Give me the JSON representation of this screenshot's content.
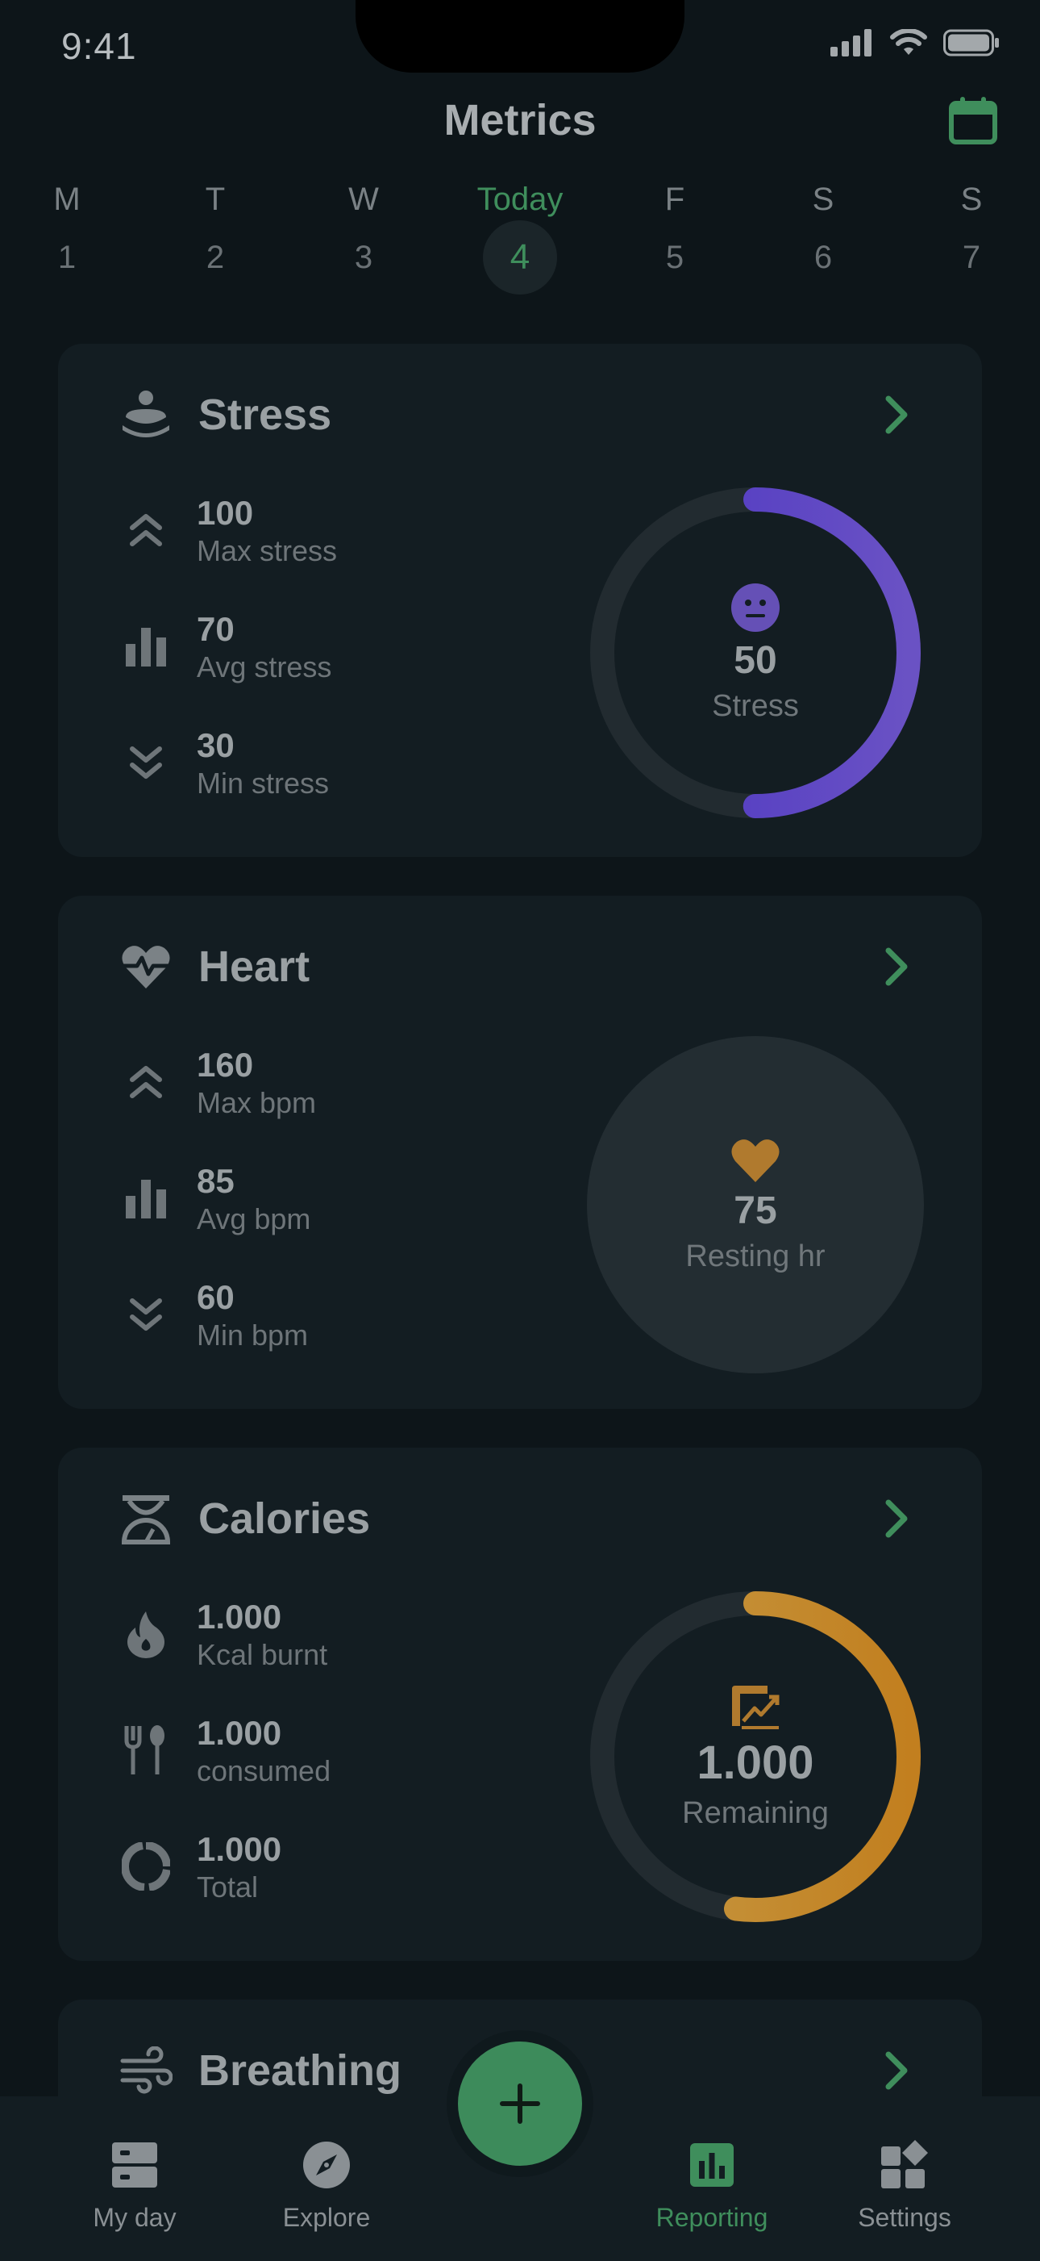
{
  "status_bar": {
    "time": "9:41"
  },
  "header": {
    "title": "Metrics"
  },
  "week": [
    {
      "letter": "M",
      "num": "1"
    },
    {
      "letter": "T",
      "num": "2"
    },
    {
      "letter": "W",
      "num": "3"
    },
    {
      "letter": "Today",
      "num": "4"
    },
    {
      "letter": "F",
      "num": "5"
    },
    {
      "letter": "S",
      "num": "6"
    },
    {
      "letter": "S",
      "num": "7"
    }
  ],
  "stress": {
    "title": "Stress",
    "stats": [
      {
        "value": "100",
        "label": "Max stress",
        "icon": "chevron-double-up-icon"
      },
      {
        "value": "70",
        "label": "Avg stress",
        "icon": "bar-chart-icon"
      },
      {
        "value": "30",
        "label": "Min stress",
        "icon": "chevron-double-down-icon"
      }
    ],
    "ring": {
      "value": "50",
      "label": "Stress",
      "progress": 0.5,
      "color": "#5a43c9"
    }
  },
  "heart": {
    "title": "Heart",
    "stats": [
      {
        "value": "160",
        "label": "Max bpm",
        "icon": "chevron-double-up-icon"
      },
      {
        "value": "85",
        "label": "Avg bpm",
        "icon": "bar-chart-icon"
      },
      {
        "value": "60",
        "label": "Min bpm",
        "icon": "chevron-double-down-icon"
      }
    ],
    "disc": {
      "value": "75",
      "label": "Resting hr",
      "color": "#b07a2e"
    }
  },
  "calories": {
    "title": "Calories",
    "stats": [
      {
        "value": "1.000",
        "label": "Kcal burnt",
        "icon": "flame-icon"
      },
      {
        "value": "1.000",
        "label": "consumed",
        "icon": "fork-spoon-icon"
      },
      {
        "value": "1.000",
        "label": "Total",
        "icon": "donut-icon"
      }
    ],
    "ring": {
      "value": "1.000",
      "label": "Remaining",
      "progress": 0.52,
      "color": "#c48a28"
    }
  },
  "breathing": {
    "title": "Breathing"
  },
  "tabbar": {
    "tabs": [
      {
        "label": "My day",
        "icon": "drawer-icon"
      },
      {
        "label": "Explore",
        "icon": "compass-icon"
      },
      {
        "label": "Reporting",
        "icon": "reporting-icon",
        "active": true
      },
      {
        "label": "Settings",
        "icon": "widgets-icon"
      }
    ]
  },
  "colors": {
    "accent": "#3f8e5c",
    "background": "#0d1519",
    "card": "#131d22"
  }
}
